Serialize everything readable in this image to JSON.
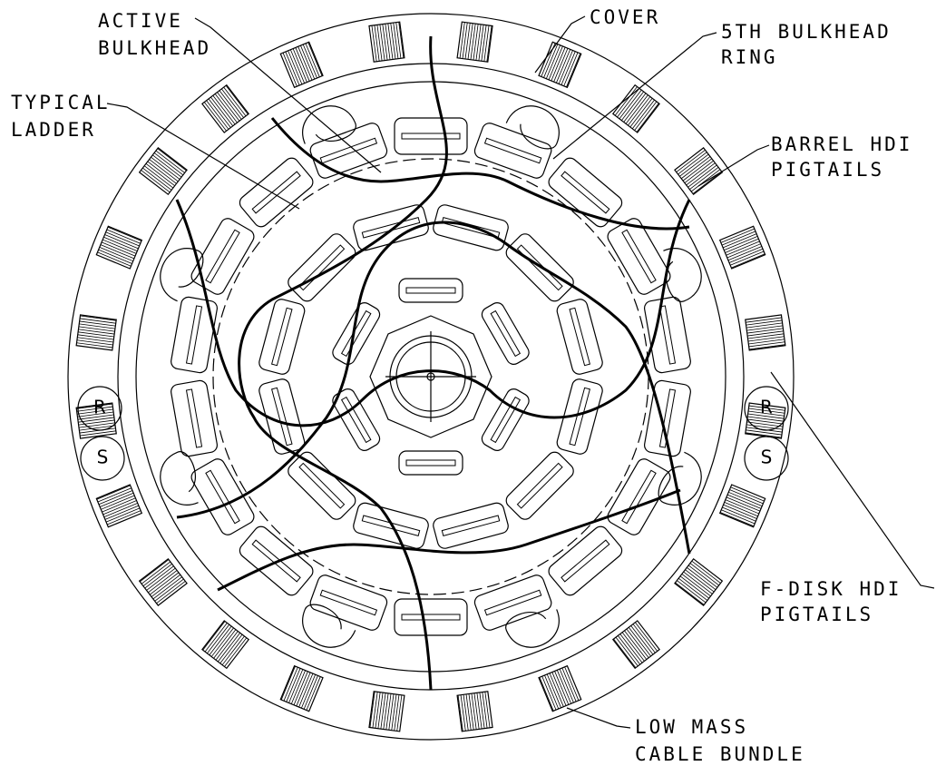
{
  "labels": [
    {
      "lines": [
        "ACTIVE",
        "BULKHEAD"
      ]
    },
    {
      "lines": [
        "COVER"
      ]
    },
    {
      "lines": [
        "5TH BULKHEAD",
        "RING"
      ]
    },
    {
      "lines": [
        "TYPICAL",
        "LADDER"
      ]
    },
    {
      "lines": [
        "BARREL HDI",
        "PIGTAILS"
      ]
    },
    {
      "lines": [
        "F-DISK HDI",
        "PIGTAILS"
      ]
    },
    {
      "lines": [
        "LOW MASS",
        "CABLE BUNDLE"
      ]
    }
  ],
  "markers": [
    "R",
    "S",
    "R",
    "S"
  ]
}
